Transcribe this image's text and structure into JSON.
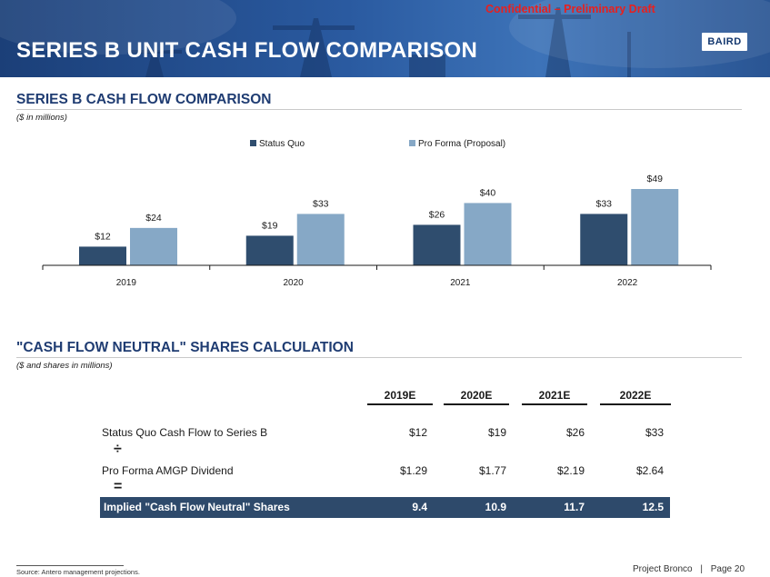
{
  "header": {
    "title": "SERIES B UNIT CASH FLOW COMPARISON",
    "confidential": "Confidential – Preliminary Draft",
    "logo": "BAIRD"
  },
  "chart_section": {
    "title": "SERIES B CASH FLOW COMPARISON",
    "subtitle": "($ in millions)"
  },
  "chart_data": {
    "type": "bar",
    "categories": [
      "2019",
      "2020",
      "2021",
      "2022"
    ],
    "series": [
      {
        "name": "Status Quo",
        "values": [
          12,
          19,
          26,
          33
        ],
        "labels": [
          "$12",
          "$19",
          "$26",
          "$33"
        ],
        "color": "#2f4d6e"
      },
      {
        "name": "Pro Forma (Proposal)",
        "values": [
          24,
          33,
          40,
          49
        ],
        "labels": [
          "$24",
          "$33",
          "$40",
          "$49"
        ],
        "color": "#86a8c6"
      }
    ],
    "ylim": [
      0,
      49
    ],
    "legend": "top",
    "grid": false
  },
  "table_section": {
    "title": "\"CASH FLOW NEUTRAL\" SHARES CALCULATION",
    "subtitle": "($ and shares in millions)",
    "columns": [
      "2019E",
      "2020E",
      "2021E",
      "2022E"
    ],
    "rows": [
      {
        "label": "Status Quo Cash Flow to Series B",
        "values": [
          "$12",
          "$19",
          "$26",
          "$33"
        ]
      },
      {
        "label": "Pro Forma AMGP Dividend",
        "values": [
          "$1.29",
          "$1.77",
          "$2.19",
          "$2.64"
        ]
      }
    ],
    "operators": [
      "÷",
      "="
    ],
    "total": {
      "label": "Implied \"Cash Flow Neutral\" Shares",
      "values": [
        "9.4",
        "10.9",
        "11.7",
        "12.5"
      ]
    }
  },
  "footer": {
    "source": "Source:  Antero management projections.",
    "project": "Project Bronco",
    "separator": "|",
    "page": "Page 20"
  }
}
